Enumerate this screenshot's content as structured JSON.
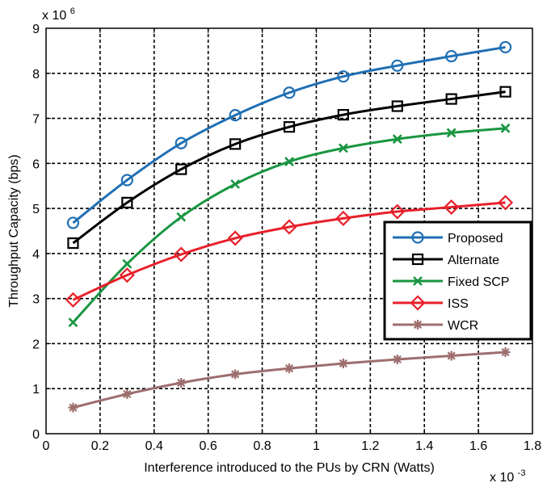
{
  "chart_data": {
    "type": "line",
    "title": "",
    "xlabel": "Interference introduced to the PUs by CRN (Watts)",
    "ylabel": "Throughput Capacity (bps)",
    "x_multiplier": "x 10",
    "x_exponent": "-3",
    "y_multiplier": "x 10",
    "y_exponent": "6",
    "xlim": [
      0,
      1.8
    ],
    "ylim": [
      0,
      9
    ],
    "xticks": [
      0,
      0.2,
      0.4,
      0.6,
      0.8,
      1,
      1.2,
      1.4,
      1.6,
      1.8
    ],
    "xtick_labels": [
      "0",
      "0.2",
      "0.4",
      "0.6",
      "0.8",
      "1",
      "1.2",
      "1.4",
      "1.6",
      "1.8"
    ],
    "yticks": [
      0,
      1,
      2,
      3,
      4,
      5,
      6,
      7,
      8,
      9
    ],
    "ytick_labels": [
      "0",
      "1",
      "2",
      "3",
      "4",
      "5",
      "6",
      "7",
      "8",
      "9"
    ],
    "grid": true,
    "legend_position": "lower-right",
    "x": [
      0.1,
      0.3,
      0.5,
      0.7,
      0.9,
      1.1,
      1.3,
      1.5,
      1.7
    ],
    "series": [
      {
        "name": "Proposed",
        "color": "#1f6fb4",
        "marker": "circle",
        "values": [
          4.68,
          5.63,
          6.45,
          7.07,
          7.57,
          7.93,
          8.17,
          8.38,
          8.58
        ]
      },
      {
        "name": "Alternate",
        "color": "#000000",
        "marker": "square",
        "values": [
          4.23,
          5.13,
          5.87,
          6.43,
          6.81,
          7.08,
          7.27,
          7.43,
          7.59
        ]
      },
      {
        "name": "Fixed SCP",
        "color": "#1a9641",
        "marker": "x",
        "values": [
          2.47,
          3.77,
          4.81,
          5.54,
          6.04,
          6.34,
          6.54,
          6.68,
          6.78
        ]
      },
      {
        "name": "ISS",
        "color": "#e8202a",
        "marker": "diamond",
        "values": [
          2.97,
          3.52,
          3.98,
          4.34,
          4.59,
          4.78,
          4.93,
          5.03,
          5.13
        ]
      },
      {
        "name": "WCR",
        "color": "#9e6e6e",
        "marker": "star",
        "values": [
          0.58,
          0.88,
          1.13,
          1.32,
          1.45,
          1.56,
          1.65,
          1.73,
          1.81
        ]
      }
    ]
  }
}
